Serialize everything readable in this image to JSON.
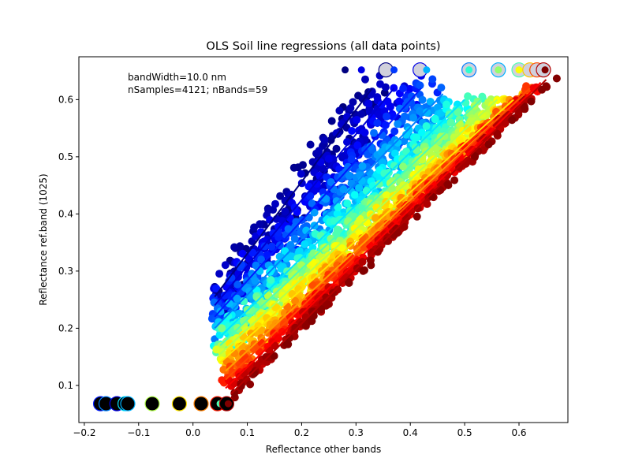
{
  "chart_data": {
    "type": "scatter",
    "title": "OLS Soil line regressions (all data points)",
    "xlabel": "Reflectance other bands",
    "ylabel": "Reflectance ref.band (1025)",
    "xlim": [
      -0.21,
      0.69
    ],
    "ylim": [
      0.035,
      0.675
    ],
    "xticks": [
      -0.2,
      -0.1,
      0.0,
      0.1,
      0.2,
      0.3,
      0.4,
      0.5,
      0.6
    ],
    "xtick_labels": [
      "−0.2",
      "−0.1",
      "0.0",
      "0.1",
      "0.2",
      "0.3",
      "0.4",
      "0.5",
      "0.6"
    ],
    "yticks": [
      0.1,
      0.2,
      0.3,
      0.4,
      0.5,
      0.6
    ],
    "ytick_labels": [
      "0.1",
      "0.2",
      "0.3",
      "0.4",
      "0.5",
      "0.6"
    ],
    "grid": false,
    "legend": "none",
    "colormap": "jet",
    "annotations": [
      "bandWidth=10.0 nm",
      "nSamples=4121; nBands=59"
    ],
    "regression_lines": [
      {
        "t": 0.0,
        "x": [
          0.04,
          0.33
        ],
        "y": [
          0.255,
          0.62
        ]
      },
      {
        "t": 0.08,
        "x": [
          0.04,
          0.37
        ],
        "y": [
          0.24,
          0.62
        ]
      },
      {
        "t": 0.15,
        "x": [
          0.04,
          0.42
        ],
        "y": [
          0.22,
          0.62
        ]
      },
      {
        "t": 0.25,
        "x": [
          0.04,
          0.46
        ],
        "y": [
          0.2,
          0.61
        ]
      },
      {
        "t": 0.35,
        "x": [
          0.05,
          0.5
        ],
        "y": [
          0.185,
          0.6
        ]
      },
      {
        "t": 0.45,
        "x": [
          0.05,
          0.53
        ],
        "y": [
          0.17,
          0.6
        ]
      },
      {
        "t": 0.55,
        "x": [
          0.05,
          0.56
        ],
        "y": [
          0.155,
          0.6
        ]
      },
      {
        "t": 0.65,
        "x": [
          0.05,
          0.59
        ],
        "y": [
          0.14,
          0.6
        ]
      },
      {
        "t": 0.72,
        "x": [
          0.06,
          0.61
        ],
        "y": [
          0.125,
          0.61
        ]
      },
      {
        "t": 0.8,
        "x": [
          0.06,
          0.62
        ],
        "y": [
          0.11,
          0.62
        ]
      },
      {
        "t": 0.88,
        "x": [
          0.06,
          0.64
        ],
        "y": [
          0.095,
          0.63
        ]
      },
      {
        "t": 0.95,
        "x": [
          0.07,
          0.65
        ],
        "y": [
          0.085,
          0.635
        ]
      }
    ],
    "top_markers": [
      {
        "x": 0.28,
        "t": 0.0,
        "size": "small"
      },
      {
        "x": 0.31,
        "t": 0.1,
        "size": "small"
      },
      {
        "x": 0.355,
        "t": 0.0,
        "size": "large"
      },
      {
        "x": 0.37,
        "t": 0.18,
        "size": "small"
      },
      {
        "x": 0.418,
        "t": 0.1,
        "size": "large"
      },
      {
        "x": 0.43,
        "t": 0.3,
        "size": "small"
      },
      {
        "x": 0.508,
        "t": 0.25,
        "size": "large"
      },
      {
        "x": 0.508,
        "t": 0.42,
        "size": "small"
      },
      {
        "x": 0.562,
        "t": 0.3,
        "size": "large"
      },
      {
        "x": 0.562,
        "t": 0.52,
        "size": "small"
      },
      {
        "x": 0.6,
        "t": 0.45,
        "size": "large"
      },
      {
        "x": 0.6,
        "t": 0.62,
        "size": "small"
      },
      {
        "x": 0.62,
        "t": 0.68,
        "size": "large"
      },
      {
        "x": 0.625,
        "t": 0.72,
        "size": "small"
      },
      {
        "x": 0.633,
        "t": 0.8,
        "size": "large"
      },
      {
        "x": 0.638,
        "t": 0.86,
        "size": "small"
      },
      {
        "x": 0.645,
        "t": 0.95,
        "size": "large"
      },
      {
        "x": 0.648,
        "t": 1.0,
        "size": "small"
      }
    ],
    "bottom_markers": [
      {
        "x": -0.17,
        "t": 0.15,
        "size": "large"
      },
      {
        "x": -0.16,
        "t": 0.25,
        "size": "large"
      },
      {
        "x": -0.14,
        "t": 0.1,
        "size": "large"
      },
      {
        "x": -0.125,
        "t": 0.35,
        "size": "large"
      },
      {
        "x": -0.12,
        "t": 0.3,
        "size": "large"
      },
      {
        "x": -0.075,
        "t": 0.55,
        "size": "large"
      },
      {
        "x": -0.025,
        "t": 0.65,
        "size": "large"
      },
      {
        "x": 0.015,
        "t": 0.75,
        "size": "large"
      },
      {
        "x": 0.045,
        "t": 0.85,
        "size": "large"
      },
      {
        "x": 0.05,
        "t": 0.45,
        "size": "small"
      },
      {
        "x": 0.055,
        "t": 0.6,
        "size": "small"
      },
      {
        "x": 0.06,
        "t": 0.8,
        "size": "small"
      },
      {
        "x": 0.062,
        "t": 0.95,
        "size": "large"
      },
      {
        "x": 0.065,
        "t": 1.0,
        "size": "small"
      }
    ],
    "top_marker_y": 0.652,
    "bottom_marker_y": 0.068
  }
}
